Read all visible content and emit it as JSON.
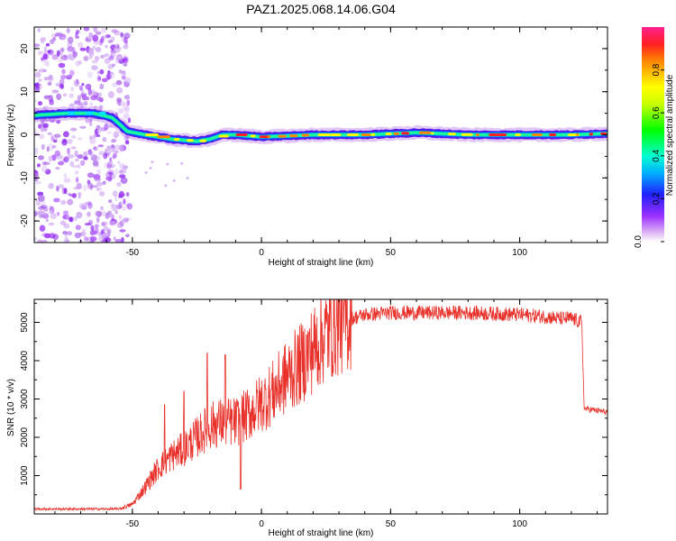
{
  "title": "PAZ1.2025.068.14.06.G04",
  "chart_data": [
    {
      "type": "heatmap",
      "xlabel": "Height of straight line (km)",
      "ylabel": "Frequency (Hz)",
      "xlim": [
        -88,
        134
      ],
      "ylim": [
        -25,
        25
      ],
      "xticks": [
        -50,
        0,
        50,
        100
      ],
      "yticks": [
        -20,
        -10,
        0,
        10,
        20
      ],
      "colorbar": {
        "label": "Normalized spectral amplitude",
        "range": [
          0,
          1
        ],
        "ticks": [
          "0.0",
          "0.2",
          "0.4",
          "0.6",
          "0.8"
        ]
      },
      "ridge": {
        "x": [
          -88,
          -75,
          -65,
          -58,
          -55,
          -52,
          -45,
          -35,
          -25,
          -20,
          -15,
          -10,
          0,
          20,
          40,
          60,
          80,
          100,
          120,
          134
        ],
        "y": [
          4.5,
          5,
          5,
          4,
          2.5,
          0.8,
          0,
          -1,
          -1.5,
          -1,
          0,
          0,
          -0.5,
          0,
          0,
          0.5,
          0,
          0,
          0,
          0.3
        ]
      }
    },
    {
      "type": "line",
      "xlabel": "Height of straight line (km)",
      "ylabel": "SNR (10 * v/v)",
      "xlim": [
        -88,
        134
      ],
      "ylim": [
        0,
        5600
      ],
      "xticks": [
        -50,
        0,
        50,
        100
      ],
      "yticks": [
        1000,
        2000,
        3000,
        4000,
        5000
      ],
      "color": "#e8312a",
      "envelope": {
        "x": [
          -88,
          -55,
          -50,
          -45,
          -40,
          -35,
          -30,
          -25,
          -20,
          -15,
          -10,
          -5,
          0,
          5,
          10,
          15,
          20,
          25,
          30,
          35,
          40,
          50,
          60,
          80,
          100,
          110,
          115,
          120,
          124,
          125,
          130,
          134
        ],
        "y": [
          130,
          130,
          250,
          700,
          1200,
          1500,
          1700,
          2000,
          2300,
          2400,
          2400,
          2600,
          2900,
          3200,
          3600,
          3900,
          4300,
          4700,
          4950,
          5100,
          5200,
          5250,
          5250,
          5250,
          5200,
          5150,
          5100,
          5100,
          5000,
          2750,
          2700,
          2650
        ]
      },
      "spikes": [
        {
          "x": -37.5,
          "y": 2850
        },
        {
          "x": -30,
          "y": 3200
        },
        {
          "x": -21,
          "y": 4200
        },
        {
          "x": -14,
          "y": 4150
        },
        {
          "x": -11,
          "y": 2200
        },
        {
          "x": -8,
          "y": 650
        }
      ]
    }
  ]
}
